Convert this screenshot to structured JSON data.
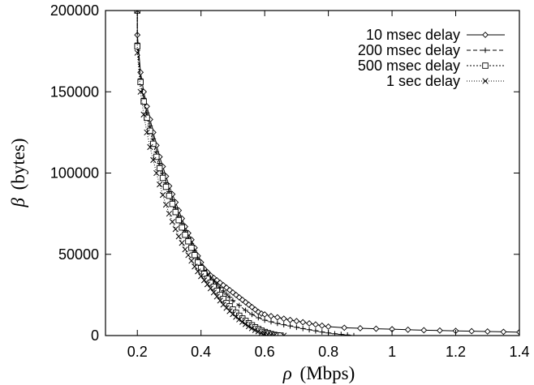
{
  "chart_data": {
    "type": "line",
    "xlabel_symbol": "ρ",
    "xlabel_unit": "(Mbps)",
    "ylabel_symbol": "β",
    "ylabel_unit": "(bytes)",
    "xlim": [
      0.1,
      1.4
    ],
    "ylim": [
      0,
      200000
    ],
    "x_ticks": [
      0.2,
      0.4,
      0.6,
      0.8,
      1,
      1.2,
      1.4
    ],
    "y_ticks": [
      0,
      50000,
      100000,
      150000,
      200000
    ],
    "grid": false,
    "legend_position": "top-right",
    "series": [
      {
        "name": "10 msec delay",
        "marker": "diamond",
        "dash": "",
        "points": [
          [
            0.2,
            200000
          ],
          [
            0.2,
            185000
          ],
          [
            0.21,
            162000
          ],
          [
            0.22,
            150000
          ],
          [
            0.23,
            141000
          ],
          [
            0.24,
            133000
          ],
          [
            0.25,
            125000
          ],
          [
            0.26,
            117000
          ],
          [
            0.27,
            110000
          ],
          [
            0.28,
            104000
          ],
          [
            0.29,
            98000
          ],
          [
            0.3,
            92000
          ],
          [
            0.31,
            87000
          ],
          [
            0.32,
            82000
          ],
          [
            0.33,
            77000
          ],
          [
            0.34,
            72000
          ],
          [
            0.35,
            67000
          ],
          [
            0.36,
            63000
          ],
          [
            0.37,
            59000
          ],
          [
            0.38,
            54000
          ],
          [
            0.39,
            49000
          ],
          [
            0.4,
            45000
          ],
          [
            0.41,
            41000
          ],
          [
            0.42,
            39000
          ],
          [
            0.43,
            37000
          ],
          [
            0.44,
            35500
          ],
          [
            0.45,
            34000
          ],
          [
            0.46,
            32500
          ],
          [
            0.47,
            31000
          ],
          [
            0.48,
            29500
          ],
          [
            0.49,
            28000
          ],
          [
            0.5,
            26500
          ],
          [
            0.51,
            25000
          ],
          [
            0.52,
            23500
          ],
          [
            0.53,
            22000
          ],
          [
            0.54,
            20500
          ],
          [
            0.55,
            19000
          ],
          [
            0.56,
            17500
          ],
          [
            0.57,
            16000
          ],
          [
            0.58,
            14500
          ],
          [
            0.59,
            13500
          ],
          [
            0.6,
            13000
          ],
          [
            0.62,
            12000
          ],
          [
            0.64,
            11200
          ],
          [
            0.66,
            10400
          ],
          [
            0.68,
            9600
          ],
          [
            0.7,
            8900
          ],
          [
            0.72,
            8200
          ],
          [
            0.74,
            7500
          ],
          [
            0.76,
            6800
          ],
          [
            0.78,
            6100
          ],
          [
            0.8,
            5500
          ],
          [
            0.85,
            4800
          ],
          [
            0.9,
            4500
          ],
          [
            0.95,
            4200
          ],
          [
            1.0,
            3900
          ],
          [
            1.05,
            3600
          ],
          [
            1.1,
            3300
          ],
          [
            1.15,
            3100
          ],
          [
            1.2,
            2900
          ],
          [
            1.25,
            2700
          ],
          [
            1.3,
            2500
          ],
          [
            1.35,
            2300
          ],
          [
            1.4,
            2100
          ]
        ]
      },
      {
        "name": "200 msec delay",
        "marker": "plus",
        "dash": "5,3",
        "points": [
          [
            0.2,
            200000
          ],
          [
            0.2,
            180000
          ],
          [
            0.21,
            158000
          ],
          [
            0.22,
            146000
          ],
          [
            0.23,
            137000
          ],
          [
            0.24,
            129000
          ],
          [
            0.25,
            121000
          ],
          [
            0.26,
            113000
          ],
          [
            0.27,
            106000
          ],
          [
            0.28,
            100000
          ],
          [
            0.29,
            94000
          ],
          [
            0.3,
            88500
          ],
          [
            0.31,
            83500
          ],
          [
            0.32,
            78500
          ],
          [
            0.33,
            73500
          ],
          [
            0.34,
            69000
          ],
          [
            0.35,
            64500
          ],
          [
            0.36,
            60500
          ],
          [
            0.37,
            56500
          ],
          [
            0.38,
            52000
          ],
          [
            0.39,
            47500
          ],
          [
            0.4,
            43500
          ],
          [
            0.41,
            40000
          ],
          [
            0.42,
            37500
          ],
          [
            0.43,
            35500
          ],
          [
            0.44,
            33500
          ],
          [
            0.45,
            31500
          ],
          [
            0.46,
            29500
          ],
          [
            0.47,
            27500
          ],
          [
            0.48,
            25500
          ],
          [
            0.49,
            23500
          ],
          [
            0.5,
            21500
          ],
          [
            0.52,
            18500
          ],
          [
            0.54,
            15500
          ],
          [
            0.56,
            13000
          ],
          [
            0.58,
            11000
          ],
          [
            0.6,
            9500
          ],
          [
            0.62,
            8500
          ],
          [
            0.64,
            7500
          ],
          [
            0.66,
            6700
          ],
          [
            0.68,
            5900
          ],
          [
            0.7,
            5100
          ],
          [
            0.72,
            4300
          ],
          [
            0.74,
            3600
          ],
          [
            0.76,
            2900
          ],
          [
            0.78,
            2200
          ],
          [
            0.8,
            1600
          ],
          [
            0.82,
            1100
          ],
          [
            0.84,
            700
          ],
          [
            0.86,
            350
          ],
          [
            0.88,
            0
          ]
        ]
      },
      {
        "name": "500 msec delay",
        "marker": "square",
        "dash": "2,2",
        "points": [
          [
            0.2,
            200000
          ],
          [
            0.2,
            178000
          ],
          [
            0.21,
            156000
          ],
          [
            0.22,
            144000
          ],
          [
            0.23,
            134000
          ],
          [
            0.24,
            126000
          ],
          [
            0.25,
            118000
          ],
          [
            0.26,
            110000
          ],
          [
            0.27,
            103000
          ],
          [
            0.28,
            97000
          ],
          [
            0.29,
            91500
          ],
          [
            0.3,
            86000
          ],
          [
            0.31,
            81000
          ],
          [
            0.32,
            76000
          ],
          [
            0.33,
            71000
          ],
          [
            0.34,
            66500
          ],
          [
            0.35,
            62000
          ],
          [
            0.36,
            58000
          ],
          [
            0.37,
            54000
          ],
          [
            0.38,
            49500
          ],
          [
            0.39,
            45000
          ],
          [
            0.4,
            41500
          ],
          [
            0.41,
            38000
          ],
          [
            0.42,
            35000
          ],
          [
            0.43,
            32500
          ],
          [
            0.44,
            30000
          ],
          [
            0.45,
            27500
          ],
          [
            0.46,
            25000
          ],
          [
            0.47,
            22500
          ],
          [
            0.48,
            20000
          ],
          [
            0.49,
            18000
          ],
          [
            0.5,
            16000
          ],
          [
            0.51,
            14000
          ],
          [
            0.52,
            12200
          ],
          [
            0.53,
            10500
          ],
          [
            0.54,
            9000
          ],
          [
            0.55,
            7600
          ],
          [
            0.56,
            6300
          ],
          [
            0.57,
            5100
          ],
          [
            0.58,
            4000
          ],
          [
            0.59,
            3000
          ],
          [
            0.6,
            2200
          ],
          [
            0.61,
            1500
          ],
          [
            0.62,
            900
          ],
          [
            0.63,
            450
          ],
          [
            0.64,
            150
          ],
          [
            0.65,
            0
          ]
        ]
      },
      {
        "name": "1 sec delay",
        "marker": "cross",
        "dash": "1,2",
        "points": [
          [
            0.2,
            200000
          ],
          [
            0.2,
            174000
          ],
          [
            0.21,
            150000
          ],
          [
            0.22,
            136000
          ],
          [
            0.23,
            125000
          ],
          [
            0.24,
            116000
          ],
          [
            0.25,
            108000
          ],
          [
            0.26,
            100000
          ],
          [
            0.27,
            93000
          ],
          [
            0.28,
            86500
          ],
          [
            0.29,
            80500
          ],
          [
            0.3,
            75000
          ],
          [
            0.31,
            70000
          ],
          [
            0.32,
            65500
          ],
          [
            0.33,
            61000
          ],
          [
            0.34,
            57000
          ],
          [
            0.35,
            53000
          ],
          [
            0.36,
            49500
          ],
          [
            0.37,
            46000
          ],
          [
            0.38,
            42500
          ],
          [
            0.39,
            39500
          ],
          [
            0.4,
            36500
          ],
          [
            0.41,
            34000
          ],
          [
            0.42,
            31500
          ],
          [
            0.43,
            29000
          ],
          [
            0.44,
            26500
          ],
          [
            0.45,
            24000
          ],
          [
            0.46,
            21500
          ],
          [
            0.47,
            19000
          ],
          [
            0.48,
            17000
          ],
          [
            0.49,
            15000
          ],
          [
            0.5,
            13200
          ],
          [
            0.51,
            11500
          ],
          [
            0.52,
            9900
          ],
          [
            0.53,
            8400
          ],
          [
            0.54,
            7000
          ],
          [
            0.55,
            5700
          ],
          [
            0.56,
            4500
          ],
          [
            0.57,
            3400
          ],
          [
            0.58,
            2500
          ],
          [
            0.59,
            1700
          ],
          [
            0.6,
            1100
          ],
          [
            0.61,
            600
          ],
          [
            0.62,
            250
          ],
          [
            0.63,
            0
          ],
          [
            0.66,
            0
          ]
        ]
      }
    ]
  }
}
